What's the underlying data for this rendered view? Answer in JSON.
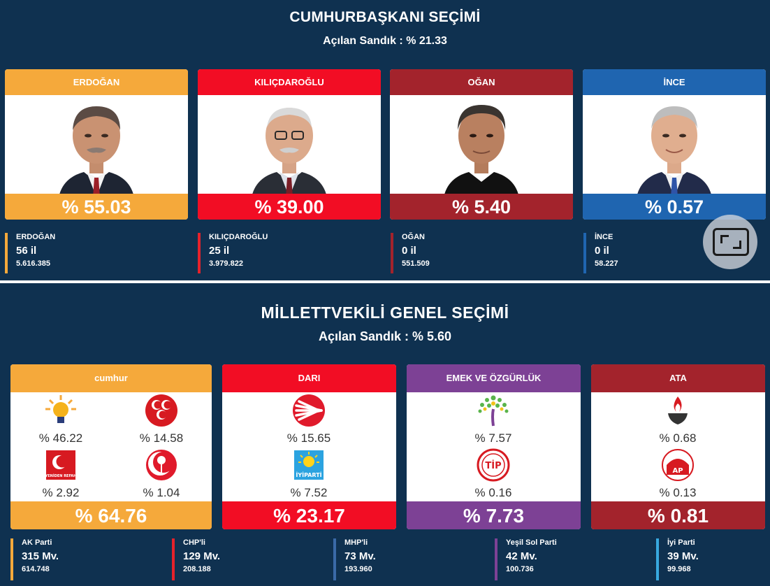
{
  "presidential": {
    "title": "CUMHURBAŞKANI SEÇİMİ",
    "subtitle": "Açılan Sandık : % 21.33",
    "candidates": [
      {
        "name": "ERDOĞAN",
        "percent": "% 55.03",
        "color": "#f5a93b",
        "stat_name": "ERDOĞAN",
        "provinces": "56 il",
        "votes": "5.616.385",
        "suit": "#1e2533",
        "tie": "#9b2028"
      },
      {
        "name": "KILIÇDAROĞLU",
        "percent": "% 39.00",
        "color": "#f20d24",
        "stat_name": "KILIÇDAROĞLU",
        "provinces": "25 il",
        "votes": "3.979.822",
        "suit": "#2a2e36",
        "tie": "#7a1d26"
      },
      {
        "name": "OĞAN",
        "percent": "% 5.40",
        "color": "#a3232c",
        "stat_name": "OĞAN",
        "provinces": "0 il",
        "votes": "551.509",
        "suit": "#111111",
        "tie": "#111111"
      },
      {
        "name": "İNCE",
        "percent": "% 0.57",
        "color": "#1f65b0",
        "stat_name": "İNCE",
        "provinces": "0 il",
        "votes": "58.227",
        "suit": "#222b4a",
        "tie": "#2f54a8"
      }
    ]
  },
  "parliamentary": {
    "title": "MİLLETTVEKİLİ GENEL SEÇİMİ",
    "subtitle": "Açılan Sandık : % 5.60",
    "alliances": [
      {
        "name": "cumhur",
        "total": "% 64.76",
        "color": "#f5a93b",
        "parties": [
          {
            "icon": "akp-bulb-icon",
            "percent": "% 46.22"
          },
          {
            "icon": "mhp-crescents-icon",
            "percent": "% 14.58"
          },
          {
            "icon": "yeniden-refah-icon",
            "percent": "% 2.92",
            "logo_text": "YENİDEN REFAH"
          },
          {
            "icon": "bbp-rose-icon",
            "percent": "% 1.04"
          }
        ]
      },
      {
        "name": "DARI",
        "total": "% 23.17",
        "color": "#f20d24",
        "parties": [
          {
            "icon": "chp-arrows-icon",
            "percent": "% 15.65"
          },
          {
            "icon": "iyi-parti-sun-icon",
            "percent": "% 7.52",
            "logo_text": "İYİPARTİ"
          }
        ]
      },
      {
        "name": "EMEK VE ÖZGÜRLÜK",
        "total": "% 7.73",
        "color": "#7d4195",
        "parties": [
          {
            "icon": "ysp-tree-icon",
            "percent": "% 7.57"
          },
          {
            "icon": "tip-logo-icon",
            "percent": "% 0.16",
            "logo_text": "TİP"
          }
        ]
      },
      {
        "name": "ATA",
        "total": "% 0.81",
        "color": "#a3232c",
        "parties": [
          {
            "icon": "zafer-torch-icon",
            "percent": "% 0.68"
          },
          {
            "icon": "adalet-partisi-icon",
            "percent": "% 0.13",
            "logo_text": "AP"
          }
        ]
      }
    ],
    "seat_stats": [
      {
        "name": "AK Parti",
        "seats": "315 Mv.",
        "votes": "614.748",
        "color": "#f5a93b"
      },
      {
        "name": "CHP'li",
        "seats": "129 Mv.",
        "votes": "208.188",
        "color": "#e5222b"
      },
      {
        "name": "MHP'li",
        "seats": "73 Mv.",
        "votes": "193.960",
        "color": "#3a6aa8"
      },
      {
        "name": "Yeşil Sol Parti",
        "seats": "42 Mv.",
        "votes": "100.736",
        "color": "#7d4195"
      },
      {
        "name": "İyi Parti",
        "seats": "39 Mv.",
        "votes": "99.968",
        "color": "#38a9e0"
      }
    ]
  },
  "fullscreen_icon": "fullscreen-icon"
}
